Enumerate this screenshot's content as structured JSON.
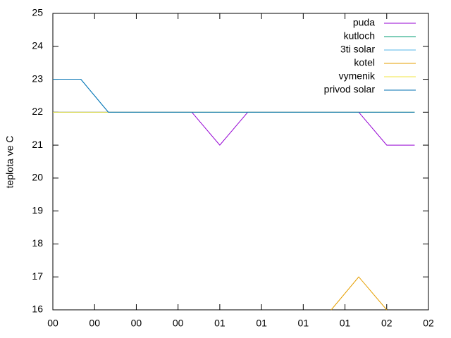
{
  "chart_data": {
    "type": "line",
    "y_label": "teplota ve C",
    "x": [
      0,
      0.67,
      1.33,
      2.0,
      2.67,
      3.33,
      4.0,
      4.67,
      5.33,
      6.0,
      6.67,
      7.33,
      8.0,
      8.67
    ],
    "series": [
      {
        "name": "puda",
        "color": "#9400d3",
        "values": [
          22,
          22,
          22,
          22,
          22,
          22,
          21,
          22,
          22,
          22,
          22,
          22,
          21,
          21
        ]
      },
      {
        "name": "kutloch",
        "color": "#009e73",
        "values": [
          22,
          22,
          22,
          22,
          22,
          22,
          22,
          22,
          22,
          22,
          22,
          22,
          22,
          22
        ]
      },
      {
        "name": "3ti solar",
        "color": "#56b4e9",
        "values": [
          23,
          23,
          22,
          22,
          22,
          22,
          22,
          22,
          22,
          22,
          22,
          22,
          22,
          22
        ]
      },
      {
        "name": "kotel",
        "color": "#e69f00",
        "values": [
          null,
          null,
          null,
          null,
          null,
          null,
          null,
          null,
          null,
          null,
          16,
          17,
          16,
          null
        ]
      },
      {
        "name": "vymenik",
        "color": "#f0e442",
        "values": [
          22,
          22,
          22,
          22,
          22,
          22,
          22,
          22,
          22,
          22,
          22,
          22,
          22,
          22
        ]
      },
      {
        "name": "privod solar",
        "color": "#0072b2",
        "values": [
          23,
          23,
          22,
          22,
          22,
          22,
          22,
          22,
          22,
          22,
          22,
          22,
          22,
          22
        ]
      }
    ],
    "xlim": [
      0,
      9
    ],
    "xticks": [
      {
        "value": 0,
        "label": "00"
      },
      {
        "value": 1,
        "label": "00"
      },
      {
        "value": 2,
        "label": "00"
      },
      {
        "value": 3,
        "label": "00"
      },
      {
        "value": 4,
        "label": "01"
      },
      {
        "value": 5,
        "label": "01"
      },
      {
        "value": 6,
        "label": "01"
      },
      {
        "value": 7,
        "label": "01"
      },
      {
        "value": 8,
        "label": "02"
      },
      {
        "value": 9,
        "label": "02"
      }
    ],
    "ylim": [
      16,
      25
    ],
    "yticks": [
      16,
      17,
      18,
      19,
      20,
      21,
      22,
      23,
      24,
      25
    ],
    "legend": "top-right"
  }
}
